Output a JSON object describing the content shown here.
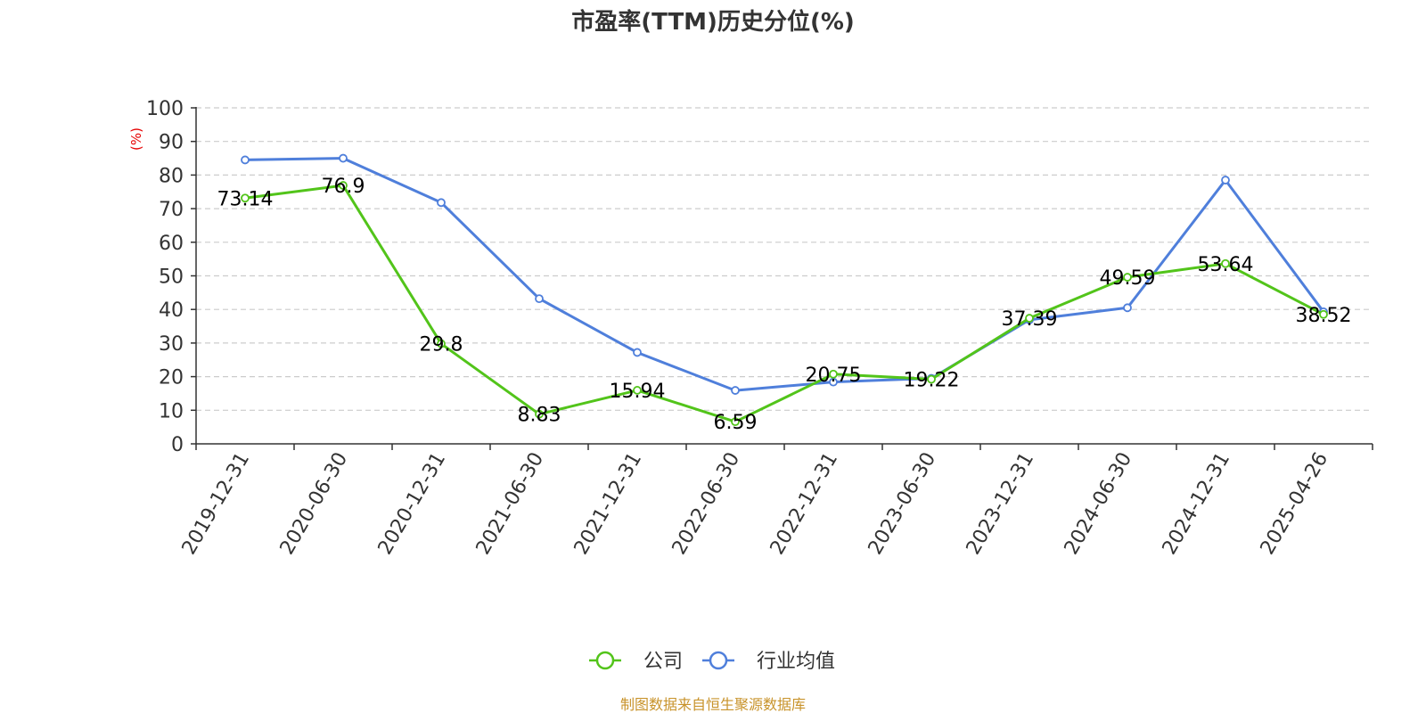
{
  "chart_data": {
    "type": "line",
    "title": "市盈率(TTM)历史分位(%)",
    "ylabel": "(%)",
    "ylim": [
      0,
      100
    ],
    "yticks": [
      0,
      10,
      20,
      30,
      40,
      50,
      60,
      70,
      80,
      90,
      100
    ],
    "grid": true,
    "legend_position": "bottom-center",
    "categories": [
      "2019-12-31",
      "2020-06-30",
      "2020-12-31",
      "2021-06-30",
      "2021-12-31",
      "2022-06-30",
      "2022-12-31",
      "2023-06-30",
      "2023-12-31",
      "2024-06-30",
      "2024-12-31",
      "2025-04-26"
    ],
    "series": [
      {
        "name": "公司",
        "color": "#52c41a",
        "values": [
          73.14,
          76.9,
          29.8,
          8.83,
          15.94,
          6.59,
          20.75,
          19.22,
          37.39,
          49.59,
          53.64,
          38.52
        ],
        "labels": [
          "73.14",
          "76.9",
          "29.8",
          "8.83",
          "15.94",
          "6.59",
          "20.75",
          "19.22",
          "37.39",
          "49.59",
          "53.64",
          "38.52"
        ]
      },
      {
        "name": "行业均值",
        "color": "#4f7fdb",
        "values": [
          84.5,
          85,
          71.8,
          43.2,
          27.2,
          15.9,
          18.4,
          19.5,
          36.9,
          40.5,
          78.5,
          39.3
        ]
      }
    ],
    "source": "制图数据来自恒生聚源数据库",
    "ylabel_color": "#e60000",
    "source_color": "#c8932b"
  }
}
